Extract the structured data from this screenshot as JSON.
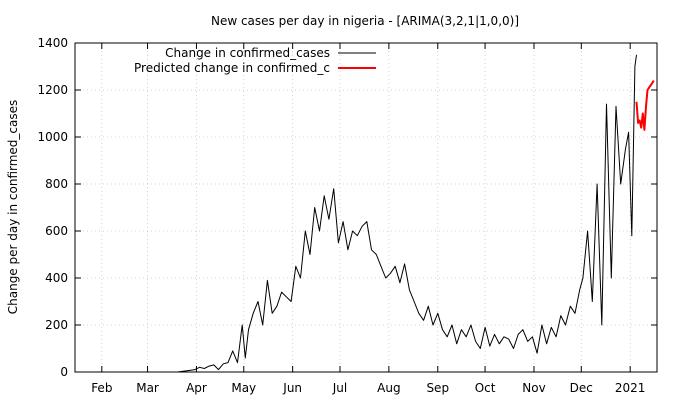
{
  "chart_data": {
    "type": "line",
    "title": "New cases per day in nigeria -  [ARIMA(3,2,1|1,0,0)]",
    "xlabel": "",
    "ylabel": "Change per day in confirmed_cases",
    "x_range": [
      "2020-01-15",
      "2021-01-18"
    ],
    "ylim": [
      0,
      1400
    ],
    "yticks": [
      0,
      200,
      400,
      600,
      800,
      1000,
      1200,
      1400
    ],
    "xticks": [
      {
        "label": "Feb",
        "date": "2020-02-01"
      },
      {
        "label": "Mar",
        "date": "2020-03-01"
      },
      {
        "label": "Apr",
        "date": "2020-04-01"
      },
      {
        "label": "May",
        "date": "2020-05-01"
      },
      {
        "label": "Jun",
        "date": "2020-06-01"
      },
      {
        "label": "Jul",
        "date": "2020-07-01"
      },
      {
        "label": "Aug",
        "date": "2020-08-01"
      },
      {
        "label": "Sep",
        "date": "2020-09-01"
      },
      {
        "label": "Oct",
        "date": "2020-10-01"
      },
      {
        "label": "Nov",
        "date": "2020-11-01"
      },
      {
        "label": "Dec",
        "date": "2020-12-01"
      },
      {
        "label": "2021",
        "date": "2021-01-01"
      }
    ],
    "grid": true,
    "legend_position": "top-left",
    "series": [
      {
        "name": "Change in confirmed_cases",
        "color": "#000000",
        "x": [
          "2020-03-20",
          "2020-03-26",
          "2020-03-31",
          "2020-04-03",
          "2020-04-06",
          "2020-04-09",
          "2020-04-12",
          "2020-04-15",
          "2020-04-18",
          "2020-04-21",
          "2020-04-24",
          "2020-04-27",
          "2020-04-30",
          "2020-05-02",
          "2020-05-04",
          "2020-05-07",
          "2020-05-10",
          "2020-05-13",
          "2020-05-16",
          "2020-05-19",
          "2020-05-22",
          "2020-05-25",
          "2020-05-28",
          "2020-05-31",
          "2020-06-03",
          "2020-06-06",
          "2020-06-09",
          "2020-06-12",
          "2020-06-15",
          "2020-06-18",
          "2020-06-21",
          "2020-06-24",
          "2020-06-27",
          "2020-06-30",
          "2020-07-03",
          "2020-07-06",
          "2020-07-09",
          "2020-07-12",
          "2020-07-15",
          "2020-07-18",
          "2020-07-21",
          "2020-07-24",
          "2020-07-27",
          "2020-07-30",
          "2020-08-02",
          "2020-08-05",
          "2020-08-08",
          "2020-08-11",
          "2020-08-14",
          "2020-08-17",
          "2020-08-20",
          "2020-08-23",
          "2020-08-26",
          "2020-08-29",
          "2020-09-01",
          "2020-09-04",
          "2020-09-07",
          "2020-09-10",
          "2020-09-13",
          "2020-09-16",
          "2020-09-19",
          "2020-09-22",
          "2020-09-25",
          "2020-09-28",
          "2020-10-01",
          "2020-10-04",
          "2020-10-07",
          "2020-10-10",
          "2020-10-13",
          "2020-10-16",
          "2020-10-19",
          "2020-10-22",
          "2020-10-25",
          "2020-10-28",
          "2020-10-31",
          "2020-11-03",
          "2020-11-06",
          "2020-11-09",
          "2020-11-12",
          "2020-11-15",
          "2020-11-18",
          "2020-11-21",
          "2020-11-24",
          "2020-11-27",
          "2020-11-30",
          "2020-12-02",
          "2020-12-05",
          "2020-12-08",
          "2020-12-11",
          "2020-12-14",
          "2020-12-17",
          "2020-12-20",
          "2020-12-23",
          "2020-12-26",
          "2020-12-29",
          "2020-12-31",
          "2021-01-02",
          "2021-01-04",
          "2021-01-05"
        ],
        "y": [
          0,
          5,
          10,
          20,
          15,
          25,
          30,
          10,
          35,
          40,
          90,
          40,
          200,
          60,
          180,
          250,
          300,
          200,
          390,
          250,
          280,
          340,
          320,
          300,
          450,
          400,
          600,
          500,
          700,
          600,
          750,
          650,
          780,
          550,
          640,
          520,
          600,
          580,
          620,
          640,
          520,
          500,
          450,
          400,
          420,
          450,
          380,
          460,
          350,
          300,
          250,
          220,
          280,
          200,
          250,
          180,
          150,
          200,
          120,
          180,
          150,
          200,
          130,
          100,
          190,
          110,
          160,
          120,
          150,
          140,
          100,
          160,
          180,
          130,
          150,
          80,
          200,
          120,
          190,
          150,
          240,
          200,
          280,
          250,
          350,
          400,
          600,
          300,
          800,
          200,
          1140,
          400,
          1130,
          800,
          950,
          1020,
          580,
          1300,
          1350
        ]
      },
      {
        "name": "Predicted change in confirmed_c",
        "color": "#ff0000",
        "x": [
          "2021-01-05",
          "2021-01-06",
          "2021-01-07",
          "2021-01-08",
          "2021-01-09",
          "2021-01-10",
          "2021-01-11",
          "2021-01-12",
          "2021-01-13",
          "2021-01-14",
          "2021-01-15",
          "2021-01-16"
        ],
        "y": [
          1150,
          1060,
          1070,
          1040,
          1100,
          1030,
          1130,
          1200,
          1210,
          1220,
          1230,
          1240
        ]
      }
    ]
  }
}
